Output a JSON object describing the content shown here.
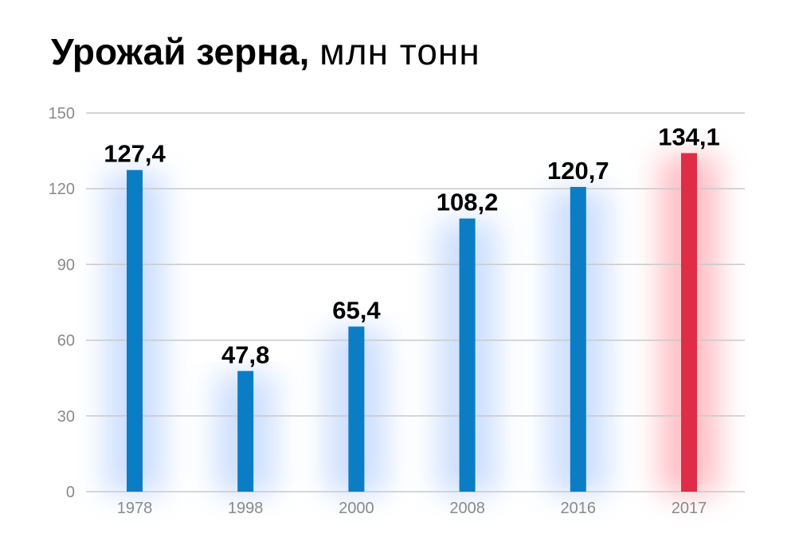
{
  "title": {
    "main": "Урожай зерна,",
    "unit": "млн тонн"
  },
  "chart_data": {
    "type": "bar",
    "categories": [
      "1978",
      "1998",
      "2000",
      "2008",
      "2016",
      "2017"
    ],
    "values": [
      127.4,
      47.8,
      65.4,
      108.2,
      120.7,
      134.1
    ],
    "value_labels": [
      "127,4",
      "47,8",
      "65,4",
      "108,2",
      "120,7",
      "134,1"
    ],
    "ylim": [
      0,
      150
    ],
    "yticks": [
      0,
      30,
      60,
      90,
      120,
      150
    ],
    "grid": true,
    "legend": "none",
    "colors": {
      "bar": "#0b7dc4",
      "highlight_bar": "#df2d47",
      "glow": "#8fb7ff",
      "highlight_glow": "#ff8a96",
      "grid": "#c9c9c9",
      "tick_label": "#8a8a8a",
      "value_label": "#000000"
    },
    "highlight_category": "2017"
  }
}
